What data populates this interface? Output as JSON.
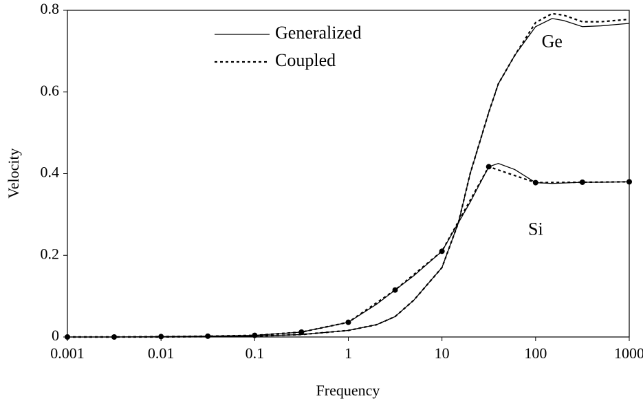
{
  "chart_data": {
    "type": "line",
    "xlabel": "Frequency",
    "ylabel": "Velocity",
    "xscale": "log",
    "xlim": [
      0.001,
      1000
    ],
    "ylim": [
      0,
      0.8
    ],
    "xticks": [
      0.001,
      0.01,
      0.1,
      1,
      10,
      100,
      1000
    ],
    "yticks": [
      0,
      0.2,
      0.4,
      0.6,
      0.8
    ],
    "grid": false,
    "legend": "upper left",
    "annotations": [
      {
        "text": "Ge",
        "x": 150,
        "y": 0.72
      },
      {
        "text": "Si",
        "x": 100,
        "y": 0.26
      }
    ],
    "series": [
      {
        "name": "Generalized",
        "color": "#000000",
        "style": "solid",
        "x": [
          0.001,
          0.00316,
          0.01,
          0.0316,
          0.1,
          0.316,
          1,
          2,
          3.16,
          5,
          10,
          15,
          20,
          31.6,
          40,
          60,
          100,
          150,
          200,
          316,
          500,
          1000
        ],
        "values": [
          0,
          0,
          0,
          0.001,
          0.002,
          0.006,
          0.016,
          0.03,
          0.05,
          0.09,
          0.17,
          0.28,
          0.4,
          0.55,
          0.62,
          0.69,
          0.76,
          0.78,
          0.775,
          0.76,
          0.762,
          0.768
        ]
      },
      {
        "name": "Coupled",
        "color": "#000000",
        "style": "dotted",
        "x": [
          0.001,
          0.00316,
          0.01,
          0.0316,
          0.1,
          0.316,
          1,
          2,
          3.16,
          5,
          10,
          15,
          20,
          31.6,
          40,
          60,
          100,
          150,
          200,
          316,
          500,
          1000
        ],
        "values": [
          0,
          0,
          0,
          0.001,
          0.002,
          0.006,
          0.016,
          0.03,
          0.05,
          0.09,
          0.17,
          0.28,
          0.4,
          0.55,
          0.62,
          0.69,
          0.77,
          0.792,
          0.788,
          0.772,
          0.772,
          0.778
        ]
      },
      {
        "color": "#000000",
        "style": "solid",
        "x": [
          0.001,
          0.00316,
          0.01,
          0.0316,
          0.1,
          0.316,
          1,
          2,
          3.16,
          5,
          10,
          15,
          20,
          31.6,
          40,
          60,
          100,
          150,
          200,
          316,
          500,
          1000
        ],
        "values": [
          0,
          0,
          0.001,
          0.002,
          0.004,
          0.012,
          0.036,
          0.08,
          0.115,
          0.15,
          0.21,
          0.28,
          0.33,
          0.417,
          0.425,
          0.41,
          0.378,
          0.376,
          0.377,
          0.379,
          0.379,
          0.38
        ]
      },
      {
        "color": "#000000",
        "style": "dotted",
        "markers": true,
        "x": [
          0.001,
          0.00316,
          0.01,
          0.0316,
          0.1,
          0.316,
          1,
          3.16,
          10,
          31.6,
          100,
          316,
          1000
        ],
        "values": [
          0,
          0,
          0.001,
          0.002,
          0.004,
          0.012,
          0.036,
          0.115,
          0.21,
          0.417,
          0.378,
          0.379,
          0.38
        ]
      }
    ]
  }
}
